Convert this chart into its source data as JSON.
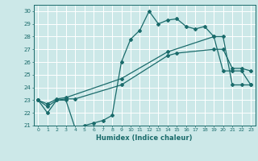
{
  "xlabel": "Humidex (Indice chaleur)",
  "bg_color": "#cce8e8",
  "grid_color": "#ffffff",
  "line_color": "#1a6b6b",
  "xlim": [
    -0.5,
    23.5
  ],
  "ylim": [
    21,
    30.5
  ],
  "xticks": [
    0,
    1,
    2,
    3,
    4,
    5,
    6,
    7,
    8,
    9,
    10,
    11,
    12,
    13,
    14,
    15,
    16,
    17,
    18,
    19,
    20,
    21,
    22,
    23
  ],
  "yticks": [
    21,
    22,
    23,
    24,
    25,
    26,
    27,
    28,
    29,
    30
  ],
  "line1_x": [
    0,
    1,
    2,
    3,
    4,
    5,
    6,
    7,
    8,
    9,
    10,
    11,
    12,
    13,
    14,
    15,
    16,
    17,
    18,
    19,
    20,
    21,
    22,
    23
  ],
  "line1_y": [
    23,
    22,
    23,
    23,
    20.8,
    21.0,
    21.2,
    21.4,
    21.8,
    26.0,
    27.8,
    28.5,
    30.0,
    29.0,
    29.3,
    29.4,
    28.8,
    28.6,
    28.8,
    28.0,
    25.3,
    25.3,
    25.3,
    24.2
  ],
  "line2_x": [
    0,
    1,
    2,
    3,
    4,
    9,
    14,
    15,
    19,
    20,
    21,
    22,
    23
  ],
  "line2_y": [
    23,
    22.5,
    23,
    23.1,
    23.1,
    24.2,
    26.5,
    26.7,
    27.0,
    27.0,
    25.5,
    25.5,
    25.3
  ],
  "line3_x": [
    0,
    1,
    2,
    3,
    9,
    14,
    19,
    20,
    21,
    22,
    23
  ],
  "line3_y": [
    23,
    22.7,
    23.1,
    23.2,
    24.7,
    26.8,
    28.0,
    28.0,
    24.2,
    24.2,
    24.2
  ]
}
